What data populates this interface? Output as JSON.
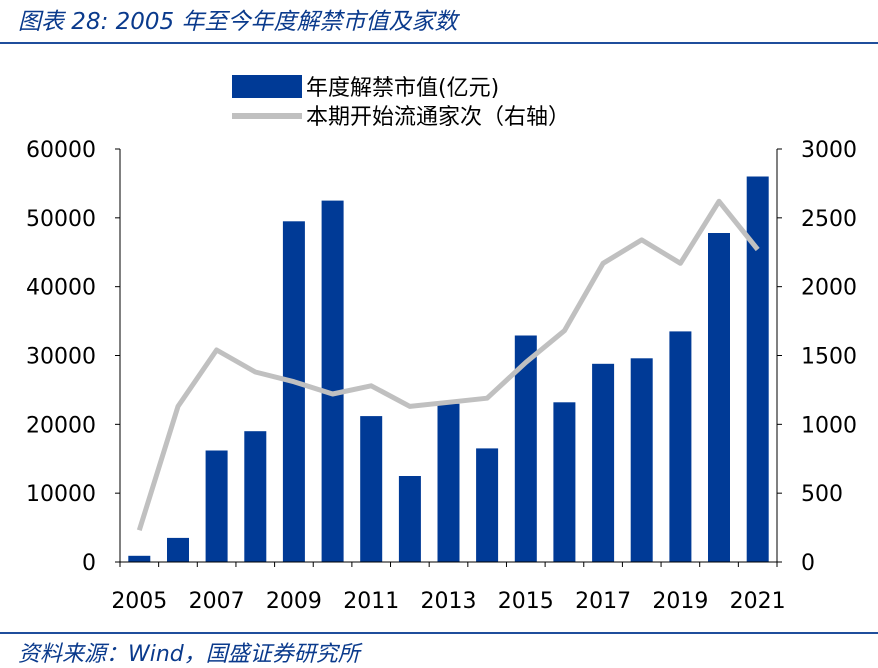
{
  "header": {
    "title": "图表 28:  2005 年至今年度解禁市值及家数"
  },
  "footer": {
    "source": "资料来源：Wind，国盛证券研究所"
  },
  "colors": {
    "bar": "#003a96",
    "line": "#c0c0c0",
    "accent": "#1f4e9c"
  },
  "chart_data": {
    "type": "bar",
    "categories": [
      "2005",
      "2006",
      "2007",
      "2008",
      "2009",
      "2010",
      "2011",
      "2012",
      "2013",
      "2014",
      "2015",
      "2016",
      "2017",
      "2018",
      "2019",
      "2020",
      "2021"
    ],
    "x_tick_labels": [
      "2005",
      "2007",
      "2009",
      "2011",
      "2013",
      "2015",
      "2017",
      "2019",
      "2021"
    ],
    "series": [
      {
        "name": "年度解禁市值(亿元)",
        "type": "bar",
        "axis": "left",
        "values": [
          900,
          3500,
          16200,
          19000,
          49500,
          52500,
          21200,
          12500,
          23000,
          16500,
          32900,
          23200,
          28800,
          29600,
          33500,
          47800,
          56000
        ]
      },
      {
        "name": "本期开始流通家次（右轴）",
        "type": "line",
        "axis": "right",
        "values": [
          230,
          1130,
          1540,
          1380,
          1310,
          1220,
          1280,
          1130,
          1160,
          1190,
          1450,
          1680,
          2170,
          2340,
          2170,
          2620,
          2270
        ]
      }
    ],
    "y_left": {
      "lim": [
        0,
        60000
      ],
      "ticks": [
        "0",
        "10000",
        "20000",
        "30000",
        "40000",
        "50000",
        "60000"
      ]
    },
    "y_right": {
      "lim": [
        0,
        3000
      ],
      "ticks": [
        "0",
        "500",
        "1000",
        "1500",
        "2000",
        "2500",
        "3000"
      ]
    },
    "legend_position": "top-center",
    "grid": false
  }
}
